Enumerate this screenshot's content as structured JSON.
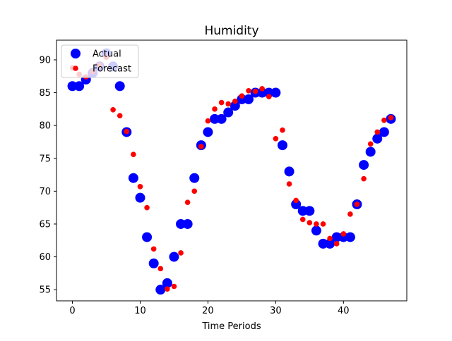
{
  "chart_data": {
    "type": "scatter",
    "title": "Humidity",
    "xlabel": "Time Periods",
    "ylabel": "",
    "xlim": [
      -2.35,
      49.35
    ],
    "ylim": [
      53.3,
      93.0
    ],
    "xticks": [
      0,
      10,
      20,
      30,
      40
    ],
    "yticks": [
      55,
      60,
      65,
      70,
      75,
      80,
      85,
      90
    ],
    "legend_position": "top-left",
    "series": [
      {
        "name": "Actual",
        "color": "#0000ff",
        "marker": "large-circle",
        "x": [
          0,
          1,
          2,
          3,
          4,
          5,
          6,
          7,
          8,
          9,
          10,
          11,
          12,
          13,
          14,
          15,
          16,
          17,
          18,
          19,
          20,
          21,
          22,
          23,
          24,
          25,
          26,
          27,
          28,
          29,
          30,
          31,
          32,
          33,
          34,
          35,
          36,
          37,
          38,
          39,
          40,
          41,
          42,
          43,
          44,
          45,
          46,
          47
        ],
        "y": [
          86,
          86,
          87,
          88,
          89,
          91,
          89,
          86,
          79,
          72,
          69,
          63,
          59,
          55,
          56,
          60,
          65,
          65,
          72,
          77,
          79,
          81,
          81,
          82,
          83,
          84,
          84,
          85,
          85,
          85,
          85,
          77,
          73,
          68,
          67,
          67,
          64,
          62,
          62,
          63,
          63,
          63,
          68,
          74,
          76,
          78,
          79,
          81
        ]
      },
      {
        "name": "Forecast",
        "color": "#ff0000",
        "marker": "small-circle",
        "x": [
          0,
          1,
          2,
          3,
          4,
          5,
          6,
          7,
          8,
          9,
          10,
          11,
          12,
          13,
          14,
          15,
          16,
          17,
          18,
          19,
          20,
          21,
          22,
          23,
          24,
          25,
          26,
          27,
          28,
          29,
          30,
          31,
          32,
          33,
          34,
          35,
          36,
          37,
          38,
          39,
          40,
          41,
          42,
          43,
          44,
          45,
          46,
          47
        ],
        "y": [
          88.8,
          87.8,
          87.4,
          88.2,
          89.2,
          90.4,
          82.4,
          81.5,
          79.1,
          75.6,
          70.7,
          67.5,
          61.2,
          58.2,
          55.1,
          55.5,
          60.6,
          68.3,
          70.0,
          76.8,
          80.7,
          82.5,
          83.5,
          83.3,
          83.7,
          84.5,
          85.3,
          85.2,
          85.6,
          84.4,
          78.0,
          79.3,
          71.1,
          68.6,
          65.7,
          65.2,
          65.0,
          65.0,
          62.8,
          62.0,
          63.5,
          66.5,
          68.0,
          71.9,
          77.2,
          79.0,
          80.8,
          81.2
        ]
      }
    ]
  }
}
